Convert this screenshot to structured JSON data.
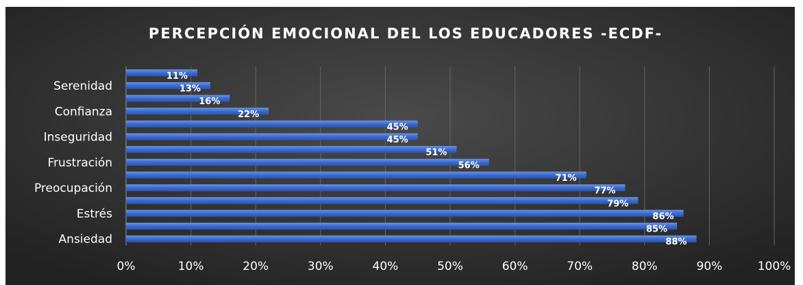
{
  "chart_data": {
    "type": "barh",
    "title": "PERCEPCIÓN EMOCIONAL DEL LOS EDUCADORES -ECDF-",
    "categories": [
      null,
      "Serenidad",
      null,
      "Confianza",
      null,
      "Inseguridad",
      null,
      "Frustración",
      null,
      "Preocupación",
      null,
      "Estrés",
      null,
      "Ansiedad"
    ],
    "values": [
      11,
      13,
      16,
      22,
      45,
      45,
      51,
      56,
      71,
      77,
      79,
      86,
      85,
      88
    ],
    "value_labels": [
      "11%",
      "13%",
      "16%",
      "22%",
      "45%",
      "45%",
      "51%",
      "56%",
      "71%",
      "77%",
      "79%",
      "86%",
      "85%",
      "88%"
    ],
    "color": "#4472c4",
    "xlim": [
      0,
      100
    ],
    "xticks": [
      {
        "value": 0,
        "label": "0%"
      },
      {
        "value": 10,
        "label": "10%"
      },
      {
        "value": 20,
        "label": "20%"
      },
      {
        "value": 30,
        "label": "30%"
      },
      {
        "value": 40,
        "label": "40%"
      },
      {
        "value": 50,
        "label": "50%"
      },
      {
        "value": 60,
        "label": "60%"
      },
      {
        "value": 70,
        "label": "70%"
      },
      {
        "value": 80,
        "label": "80%"
      },
      {
        "value": 90,
        "label": "90%"
      },
      {
        "value": 100,
        "label": "100%"
      }
    ],
    "grid": true
  }
}
